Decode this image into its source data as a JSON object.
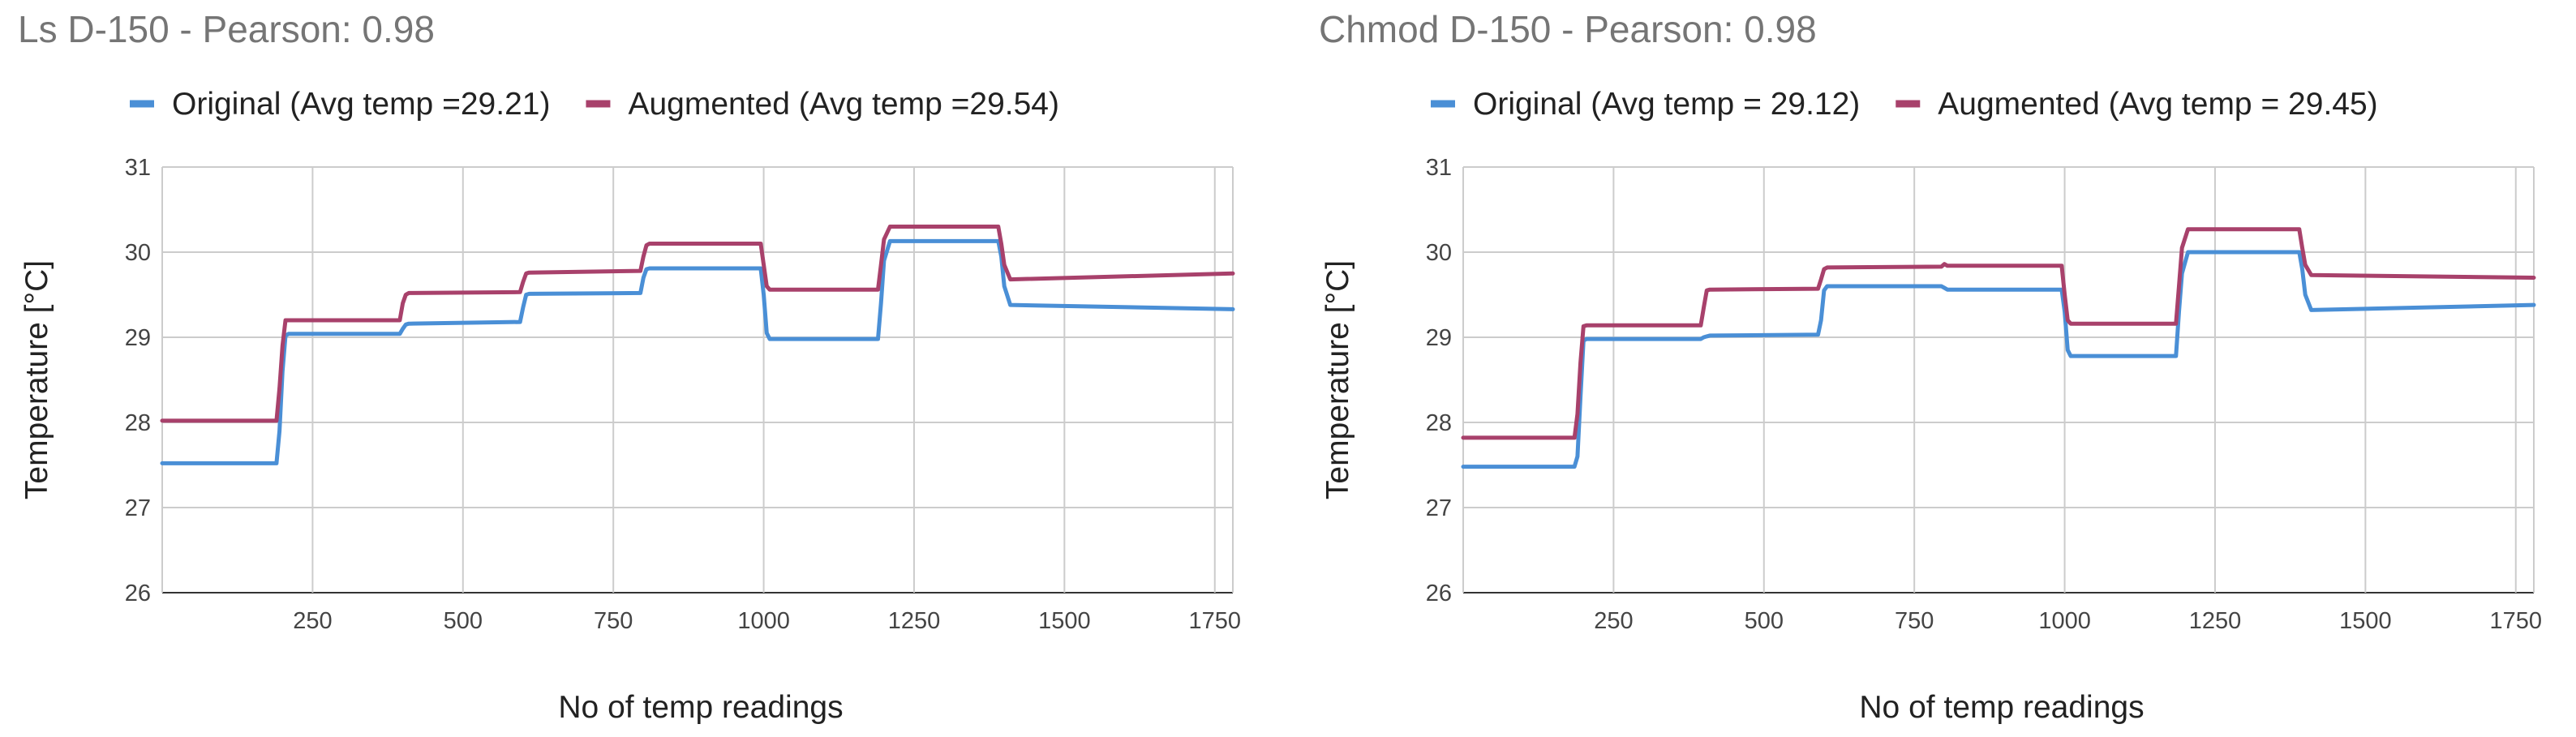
{
  "chart_data": [
    {
      "type": "line",
      "title": "Ls D-150 - Pearson: 0.98",
      "xlabel": "No of temp readings",
      "ylabel": "Temperature [°C]",
      "xlim": [
        0,
        1780
      ],
      "ylim": [
        26,
        31
      ],
      "xticks": [
        250,
        500,
        750,
        1000,
        1250,
        1500,
        1750
      ],
      "yticks": [
        26,
        27,
        28,
        29,
        30,
        31
      ],
      "grid": true,
      "legend_position": "top",
      "series": [
        {
          "name": "Original (Avg temp =29.21)",
          "color": "#4a8fd6",
          "x": [
            0,
            190,
            195,
            200,
            205,
            210,
            395,
            400,
            405,
            410,
            595,
            600,
            605,
            610,
            795,
            800,
            805,
            810,
            995,
            1000,
            1005,
            1010,
            1190,
            1195,
            1200,
            1210,
            1390,
            1395,
            1400,
            1410,
            1780
          ],
          "y": [
            27.52,
            27.52,
            27.9,
            28.6,
            29.02,
            29.04,
            29.04,
            29.1,
            29.15,
            29.16,
            29.18,
            29.35,
            29.5,
            29.51,
            29.52,
            29.7,
            29.8,
            29.81,
            29.81,
            29.5,
            29.05,
            28.98,
            28.98,
            29.4,
            29.9,
            30.13,
            30.13,
            29.95,
            29.6,
            29.38,
            29.33
          ]
        },
        {
          "name": "Augmented (Avg temp =29.54)",
          "color": "#a8416b",
          "x": [
            0,
            190,
            195,
            200,
            205,
            210,
            395,
            400,
            405,
            410,
            595,
            600,
            605,
            610,
            795,
            800,
            805,
            810,
            995,
            1000,
            1005,
            1010,
            1190,
            1195,
            1200,
            1210,
            1390,
            1395,
            1400,
            1410,
            1780
          ],
          "y": [
            28.02,
            28.02,
            28.4,
            28.9,
            29.2,
            29.2,
            29.2,
            29.4,
            29.5,
            29.52,
            29.53,
            29.65,
            29.75,
            29.76,
            29.78,
            29.95,
            30.08,
            30.1,
            30.1,
            29.85,
            29.6,
            29.56,
            29.56,
            29.85,
            30.15,
            30.3,
            30.3,
            30.1,
            29.85,
            29.68,
            29.75
          ]
        }
      ]
    },
    {
      "type": "line",
      "title": "Chmod D-150 - Pearson: 0.98",
      "xlabel": "No of temp readings",
      "ylabel": "Temperature [°C]",
      "xlim": [
        0,
        1780
      ],
      "ylim": [
        26,
        31
      ],
      "xticks": [
        250,
        500,
        750,
        1000,
        1250,
        1500,
        1750
      ],
      "yticks": [
        26,
        27,
        28,
        29,
        30,
        31
      ],
      "grid": true,
      "legend_position": "top",
      "series": [
        {
          "name": "Original (Avg temp = 29.12)",
          "color": "#4a8fd6",
          "x": [
            0,
            185,
            190,
            195,
            200,
            205,
            395,
            400,
            405,
            410,
            590,
            595,
            600,
            605,
            795,
            800,
            805,
            810,
            995,
            1000,
            1005,
            1010,
            1185,
            1190,
            1195,
            1205,
            1390,
            1395,
            1400,
            1410,
            1780
          ],
          "y": [
            27.48,
            27.48,
            27.6,
            28.3,
            28.96,
            28.98,
            28.98,
            29.0,
            29.01,
            29.02,
            29.03,
            29.2,
            29.55,
            29.6,
            29.6,
            29.58,
            29.56,
            29.56,
            29.56,
            29.3,
            28.85,
            28.78,
            28.78,
            29.3,
            29.75,
            30.0,
            30.0,
            29.8,
            29.5,
            29.32,
            29.38
          ]
        },
        {
          "name": "Augmented (Avg temp = 29.45)",
          "color": "#a8416b",
          "x": [
            0,
            185,
            190,
            195,
            200,
            205,
            395,
            400,
            405,
            410,
            590,
            595,
            600,
            605,
            795,
            800,
            805,
            810,
            995,
            1000,
            1005,
            1010,
            1185,
            1190,
            1195,
            1205,
            1390,
            1395,
            1400,
            1410,
            1780
          ],
          "y": [
            27.82,
            27.82,
            28.1,
            28.7,
            29.13,
            29.14,
            29.14,
            29.35,
            29.55,
            29.56,
            29.57,
            29.68,
            29.8,
            29.82,
            29.83,
            29.86,
            29.84,
            29.84,
            29.84,
            29.5,
            29.2,
            29.16,
            29.16,
            29.6,
            30.05,
            30.27,
            30.27,
            30.05,
            29.85,
            29.73,
            29.7
          ]
        }
      ]
    }
  ]
}
